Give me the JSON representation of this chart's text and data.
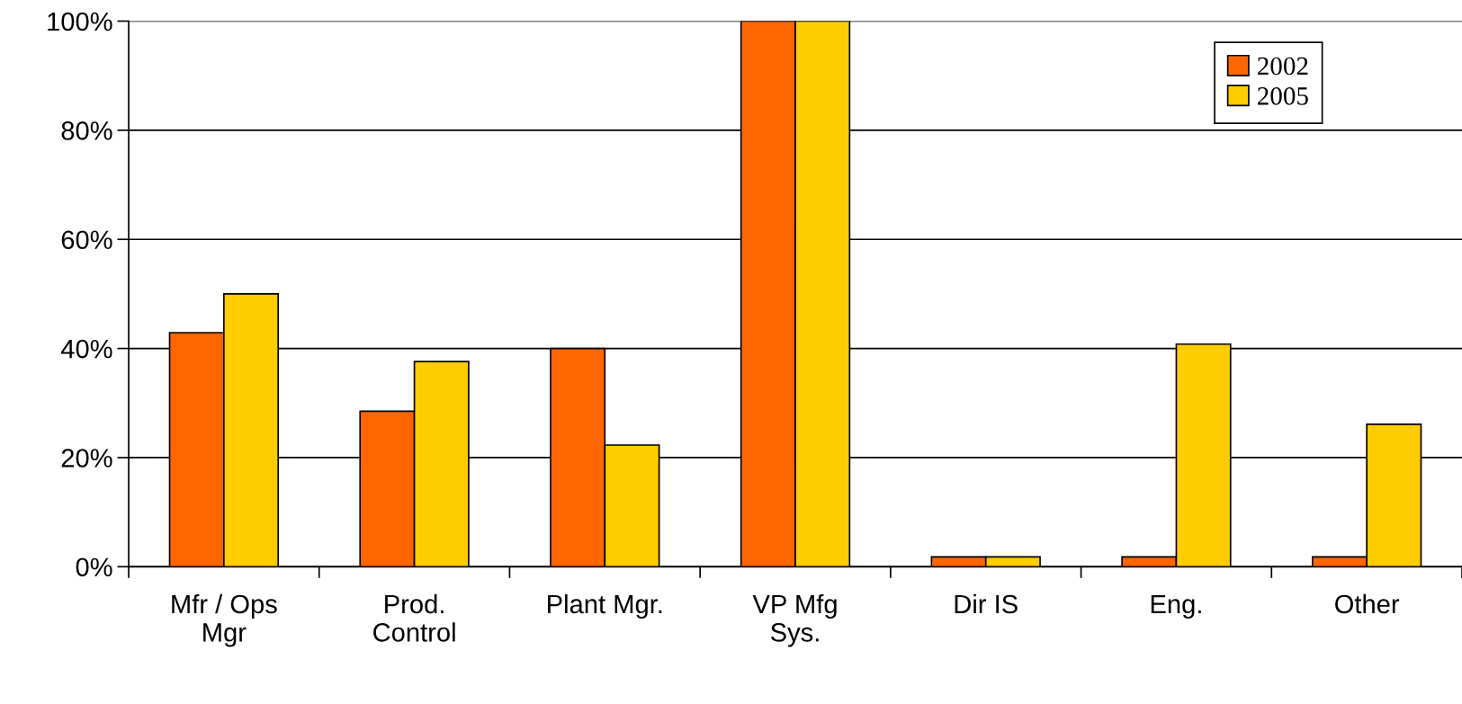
{
  "chart_data": {
    "type": "bar",
    "categories": [
      "Mfr / Ops\nMgr",
      "Prod.\nControl",
      "Plant Mgr.",
      "VP Mfg\nSys.",
      "Dir IS",
      "Eng.",
      "Other"
    ],
    "series": [
      {
        "name": "2002",
        "color": "#ff6600",
        "values": [
          42.9,
          28.5,
          40,
          100,
          1.8,
          1.8,
          1.8
        ]
      },
      {
        "name": "2005",
        "color": "#ffcc00",
        "values": [
          50,
          37.6,
          22.3,
          100,
          1.8,
          40.8,
          26.1
        ]
      }
    ],
    "ylim": [
      0,
      100
    ],
    "yticks": [
      {
        "value": 0,
        "label": "0%"
      },
      {
        "value": 20,
        "label": "20%"
      },
      {
        "value": 40,
        "label": "40%"
      },
      {
        "value": 60,
        "label": "60%"
      },
      {
        "value": 80,
        "label": "80%"
      },
      {
        "value": 100,
        "label": "100%"
      }
    ],
    "grid": "y",
    "legend": "top right"
  }
}
